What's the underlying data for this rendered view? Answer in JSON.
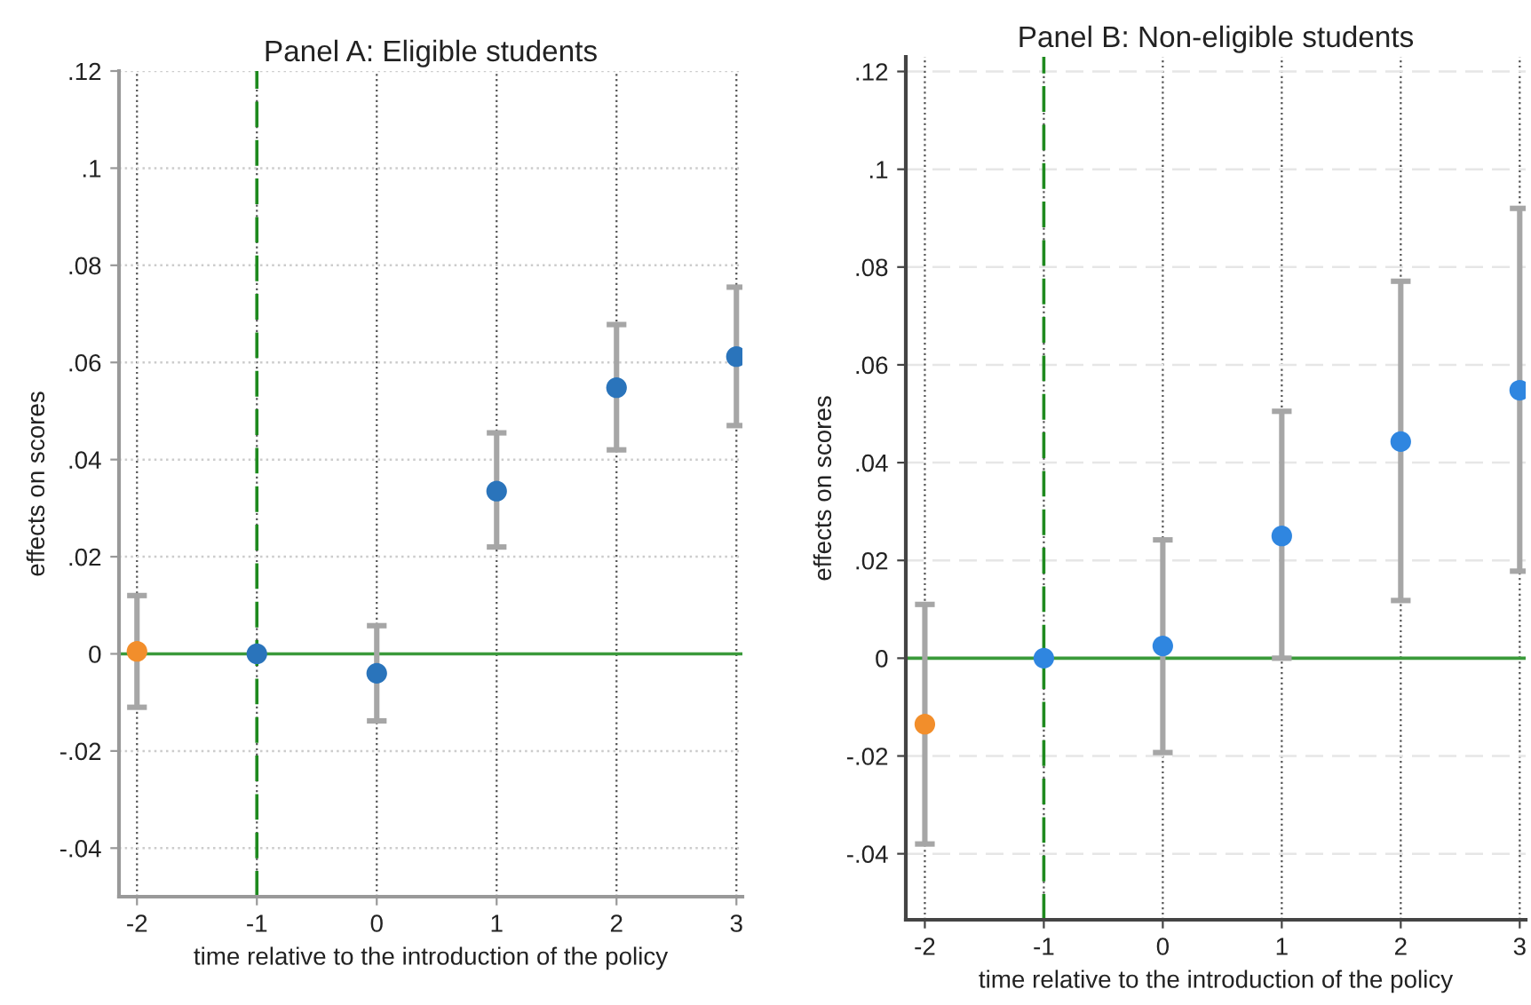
{
  "chart_data": [
    {
      "type": "scatter",
      "title": "Panel A: Eligible students",
      "xlabel": "time relative to the introduction of the policy",
      "ylabel": "effects on scores",
      "x": [
        -2,
        -1,
        0,
        1,
        2,
        3
      ],
      "values": [
        0.0005,
        0,
        -0.004,
        0.0335,
        0.0548,
        0.0612
      ],
      "errors": [
        [
          -0.011,
          0.012
        ],
        null,
        [
          -0.0138,
          0.0058
        ],
        [
          0.022,
          0.0455
        ],
        [
          0.042,
          0.0678
        ],
        [
          0.047,
          0.0755
        ]
      ],
      "colors": [
        "#f28e2b",
        "#2a74bb",
        "#2a74bb",
        "#2a74bb",
        "#2a74bb",
        "#2a74bb"
      ],
      "marker": "circle",
      "grid": true,
      "xlim": [
        -2.15,
        3.05
      ],
      "xticks": [
        -2,
        -1,
        0,
        1,
        2,
        3
      ],
      "ylim": [
        -0.05,
        0.12
      ],
      "yticks": [
        {
          "value": -0.04,
          "label": "-.04"
        },
        {
          "value": -0.02,
          "label": "-.02"
        },
        0,
        {
          "value": 0.02,
          "label": ".02"
        },
        {
          "value": 0.04,
          "label": ".04"
        },
        {
          "value": 0.06,
          "label": ".06"
        },
        {
          "value": 0.08,
          "label": ".08"
        },
        {
          "value": 0.1,
          "label": ".1"
        },
        {
          "value": 0.12,
          "label": ".12"
        }
      ],
      "ref_lines": [
        {
          "axis": "y",
          "value": 0,
          "color": "#3a9a3a",
          "line_style": "solid"
        },
        {
          "axis": "x",
          "value": -1,
          "color": "#1e8a1e",
          "line_style": "dashed"
        }
      ]
    },
    {
      "type": "scatter",
      "title": "Panel B: Non-eligible students",
      "xlabel": "time relative to the introduction of the policy",
      "ylabel": "effects on scores",
      "x": [
        -2,
        -1,
        0,
        1,
        2,
        3
      ],
      "values": [
        -0.0135,
        0,
        0.0025,
        0.025,
        0.0443,
        0.0548
      ],
      "errors": [
        [
          -0.038,
          0.011
        ],
        null,
        [
          -0.0193,
          0.0242
        ],
        [
          0.0,
          0.0505
        ],
        [
          0.0118,
          0.0771
        ],
        [
          0.0178,
          0.092
        ]
      ],
      "colors": [
        "#f28e2b",
        "#2f86e0",
        "#2f86e0",
        "#2f86e0",
        "#2f86e0",
        "#2f86e0"
      ],
      "marker": "circle",
      "grid": true,
      "xlim": [
        -2.16,
        3.05
      ],
      "xticks": [
        -2,
        -1,
        0,
        1,
        2,
        3
      ],
      "ylim": [
        -0.0535,
        0.123
      ],
      "yticks": [
        {
          "value": -0.04,
          "label": "-.04"
        },
        {
          "value": -0.02,
          "label": "-.02"
        },
        0,
        {
          "value": 0.02,
          "label": ".02"
        },
        {
          "value": 0.04,
          "label": ".04"
        },
        {
          "value": 0.06,
          "label": ".06"
        },
        {
          "value": 0.08,
          "label": ".08"
        },
        {
          "value": 0.1,
          "label": ".1"
        },
        {
          "value": 0.12,
          "label": ".12"
        }
      ],
      "ref_lines": [
        {
          "axis": "y",
          "value": 0,
          "color": "#3a9a3a",
          "line_style": "solid"
        },
        {
          "axis": "x",
          "value": -1,
          "color": "#1e8a1e",
          "line_style": "dashed"
        }
      ]
    }
  ]
}
